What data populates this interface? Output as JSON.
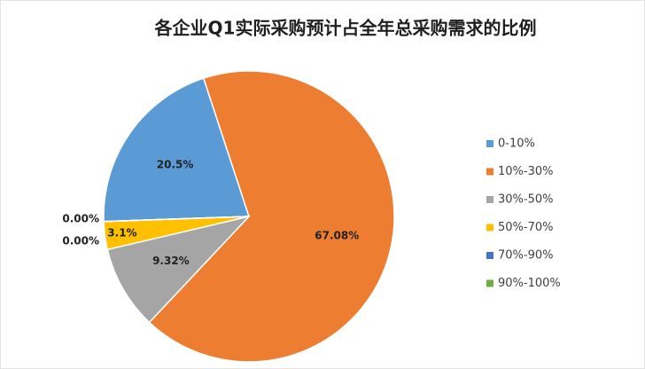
{
  "chart_data": {
    "type": "pie",
    "title": "各企业Q1实际采购预计占全年总采购需求的比例",
    "categories": [
      "0-10%",
      "10%-30%",
      "30%-50%",
      "50%-70%",
      "70%-90%",
      "90%-100%"
    ],
    "values": [
      20.5,
      67.08,
      9.32,
      3.1,
      0,
      0
    ],
    "value_labels": [
      "20.5%",
      "67.08%",
      "9.32%",
      "3.1%",
      "0.00%",
      "0.00%"
    ],
    "colors": [
      "#5b9bd5",
      "#ed7d31",
      "#a5a5a5",
      "#ffc000",
      "#4472c4",
      "#70ad47"
    ],
    "legend": "right"
  }
}
